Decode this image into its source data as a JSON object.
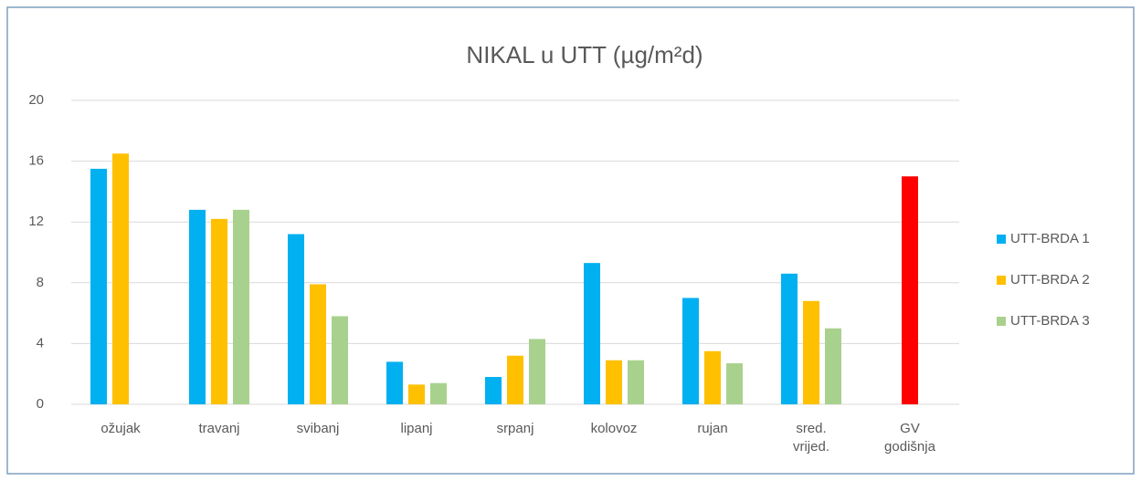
{
  "chart_data": {
    "type": "bar",
    "title": "NIKAL u UTT (µg/m²d)",
    "categories": [
      "ožujak",
      "travanj",
      "svibanj",
      "lipanj",
      "srpanj",
      "kolovoz",
      "rujan",
      "sred. vrijed.",
      "GV godišnja"
    ],
    "series": [
      {
        "name": "UTT-BRDA 1",
        "color": "#00b0f0",
        "values": [
          15.5,
          12.8,
          11.2,
          2.8,
          1.8,
          9.3,
          7.0,
          8.6,
          null
        ]
      },
      {
        "name": "UTT-BRDA 2",
        "color": "#ffc000",
        "values": [
          16.5,
          12.2,
          7.9,
          1.3,
          3.2,
          2.9,
          3.5,
          6.8,
          15
        ],
        "colors": [
          "#ffc000",
          "#ffc000",
          "#ffc000",
          "#ffc000",
          "#ffc000",
          "#ffc000",
          "#ffc000",
          "#ffc000",
          "#ff0000"
        ]
      },
      {
        "name": "UTT-BRDA 3",
        "color": "#a9d18e",
        "values": [
          null,
          12.8,
          5.8,
          1.4,
          4.3,
          2.9,
          2.7,
          5.0,
          null
        ]
      }
    ],
    "ylim": [
      0,
      20
    ],
    "yticks": [
      0,
      4,
      8,
      12,
      16,
      20
    ],
    "grid": true,
    "legend": "right"
  }
}
